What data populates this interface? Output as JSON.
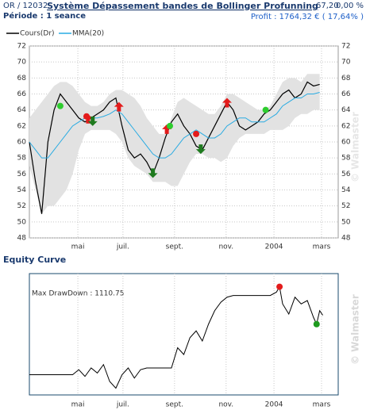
{
  "header": {
    "symbol": "OR / 12032",
    "period": "Période : 1 seance",
    "price": "67,20",
    "change": "0,00 %",
    "profit": "Profit : 1764,32 € ( 17,64% )",
    "watermark": "© Walmaster"
  },
  "chart_data": [
    {
      "type": "line",
      "title": "Système Dépassement bandes de Bollinger Profunning",
      "x": [
        0,
        2,
        4,
        6,
        8,
        10,
        12,
        14,
        16,
        18,
        20,
        22,
        24,
        26,
        28,
        30,
        32,
        34,
        36,
        38,
        40,
        42,
        44,
        46,
        48,
        50,
        52,
        54,
        56,
        58,
        60,
        62,
        64,
        66,
        68,
        70,
        72,
        74,
        76,
        78,
        80,
        82,
        84,
        86,
        88,
        90,
        92,
        94
      ],
      "series": [
        {
          "name": "Cours(Dr)",
          "color": "#000000",
          "values": [
            60,
            55,
            51,
            60,
            64,
            66,
            65,
            64,
            63,
            62.5,
            63,
            63.5,
            64,
            65,
            65.5,
            62,
            59,
            58,
            58.5,
            57.5,
            56,
            58,
            60.5,
            62.5,
            63.5,
            62,
            61,
            59.5,
            59,
            60.5,
            62,
            63.5,
            65,
            64,
            62,
            61.5,
            62,
            62.5,
            63.5,
            64,
            65,
            66,
            66.5,
            65.5,
            66,
            67.5,
            67,
            67.2
          ]
        },
        {
          "name": "MMA(20)",
          "color": "#29abe2",
          "values": [
            60,
            59,
            58,
            58,
            59,
            60,
            61,
            62,
            62.5,
            63,
            63,
            63,
            63.2,
            63.5,
            64,
            63.5,
            62.5,
            61.5,
            60.5,
            59.5,
            58.5,
            58,
            58,
            58.5,
            59.5,
            60.5,
            61,
            61.5,
            61,
            60.5,
            60.5,
            61,
            62,
            62.5,
            63,
            63,
            62.5,
            62.5,
            62.5,
            63,
            63.5,
            64.5,
            65,
            65.5,
            65.5,
            66,
            66,
            66.2
          ]
        }
      ],
      "bands": {
        "color": "#e2e2e2",
        "upper": [
          63,
          64,
          65,
          66,
          67,
          67.5,
          67.5,
          67,
          66,
          65,
          64.5,
          64.5,
          65,
          66,
          66.5,
          66.5,
          66,
          65.5,
          64.5,
          63,
          62,
          61,
          61,
          63,
          65,
          65.5,
          65,
          64.5,
          64,
          63.5,
          63.5,
          64.5,
          66,
          66,
          65.5,
          65,
          64.5,
          64,
          64,
          64.5,
          66,
          67.5,
          68,
          68,
          67.5,
          68.5,
          68.5,
          68.5
        ],
        "lower": [
          57,
          54,
          51,
          52,
          52,
          53,
          54,
          56,
          59,
          61,
          61.5,
          61.5,
          61.5,
          61.5,
          61,
          60,
          58,
          57,
          56.5,
          56,
          55,
          55,
          55,
          54.5,
          54.5,
          56,
          57.5,
          58.5,
          58.5,
          58,
          58,
          57.5,
          58,
          59.5,
          60.5,
          61,
          61,
          61,
          61,
          61.5,
          61.5,
          61.5,
          62,
          63,
          63.5,
          63.5,
          64,
          64
        ]
      },
      "sell": {
        "color": "#e31b1b",
        "x": [
          19,
          29,
          44.5,
          64
        ],
        "values": [
          63.5,
          65,
          62.2,
          65.5
        ]
      },
      "buy": {
        "color": "#1e7a1e",
        "x": [
          20.5,
          40,
          55.5
        ],
        "values": [
          62,
          55.5,
          58.5
        ]
      },
      "exit_long": {
        "color": "#2ecc2e",
        "x": [
          10,
          45.5,
          76.5
        ],
        "values": [
          64.5,
          62,
          64
        ]
      },
      "exit_short": {
        "color": "#e31b1b",
        "x": [
          18.5,
          54
        ],
        "values": [
          63.2,
          61
        ]
      },
      "xlim": [
        0,
        100
      ],
      "ylim": [
        48,
        72
      ],
      "yticks": [
        48,
        50,
        52,
        54,
        56,
        58,
        60,
        62,
        64,
        66,
        68,
        70,
        72
      ],
      "xticks": [
        {
          "value": 15.7,
          "label": "mai"
        },
        {
          "value": 30.3,
          "label": "juil."
        },
        {
          "value": 47,
          "label": "sept."
        },
        {
          "value": 63.7,
          "label": "nov."
        },
        {
          "value": 79.2,
          "label": "2004"
        },
        {
          "value": 94.6,
          "label": "mars"
        }
      ],
      "grid": true
    },
    {
      "type": "line",
      "title": "Equity Curve",
      "annotation": "Max DrawDown : 1110.75",
      "x": [
        0,
        14,
        16,
        18,
        20,
        22,
        24,
        26,
        28,
        30,
        32,
        34,
        36,
        38,
        40,
        42,
        44,
        46,
        48,
        50,
        52,
        54,
        56,
        58,
        60,
        62,
        64,
        66,
        68,
        70,
        72,
        74,
        76,
        78,
        80,
        81,
        82,
        84,
        86,
        88,
        90,
        92,
        93,
        94,
        95
      ],
      "values": [
        10000,
        10000,
        10150,
        9950,
        10200,
        10050,
        10300,
        9800,
        9600,
        10000,
        10200,
        9900,
        10150,
        10200,
        10200,
        10200,
        10200,
        10200,
        10800,
        10600,
        11100,
        11300,
        11000,
        11500,
        11900,
        12150,
        12300,
        12350,
        12350,
        12350,
        12350,
        12350,
        12350,
        12350,
        12450,
        12610,
        12100,
        11800,
        12300,
        12100,
        12200,
        11700,
        11500,
        11900,
        11764
      ],
      "color": "#000000",
      "peak": {
        "x": 81,
        "value": 12610,
        "color": "#e31b1b"
      },
      "trough": {
        "x": 93,
        "value": 11500,
        "color": "#1e9a1e"
      },
      "xlim": [
        0,
        100
      ],
      "ylim": [
        9400,
        13000
      ],
      "xticks": [
        {
          "value": 15.7,
          "label": "mai"
        },
        {
          "value": 30.3,
          "label": "juil."
        },
        {
          "value": 47,
          "label": "sept."
        },
        {
          "value": 63.7,
          "label": "nov."
        },
        {
          "value": 79.2,
          "label": "2004"
        },
        {
          "value": 94.6,
          "label": "mars"
        }
      ],
      "grid": true
    }
  ]
}
